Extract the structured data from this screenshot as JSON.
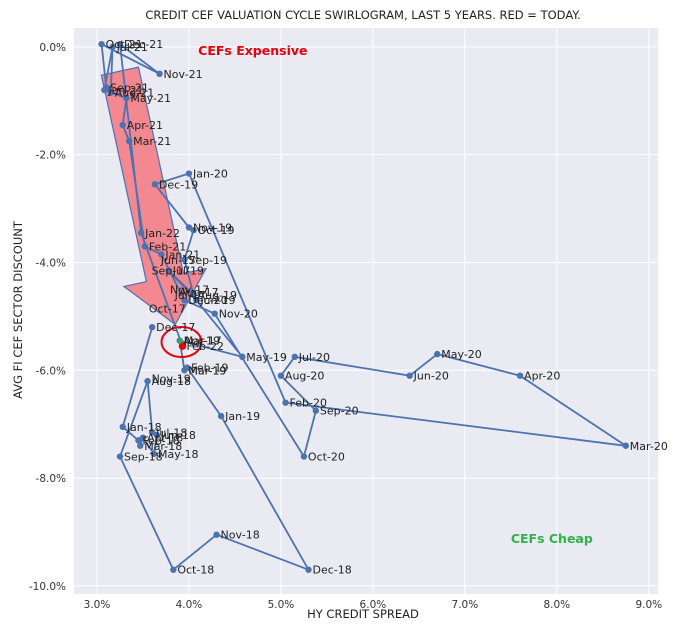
{
  "chart_data": {
    "type": "line",
    "title": "CREDIT CEF VALUATION CYCLE SWIRLOGRAM, LAST 5 YEARS. RED = TODAY.",
    "xlabel": "HY CREDIT SPREAD",
    "ylabel": "AVG FI CEF SECTOR DISCOUNT",
    "xlim": [
      2.75,
      9.1
    ],
    "ylim": [
      -10.15,
      0.35
    ],
    "x_ticks": [
      3.0,
      4.0,
      5.0,
      6.0,
      7.0,
      8.0,
      9.0
    ],
    "x_tick_labels": [
      "3.0%",
      "4.0%",
      "5.0%",
      "6.0%",
      "7.0%",
      "8.0%",
      "9.0%"
    ],
    "y_ticks": [
      0,
      -2,
      -4,
      -6,
      -8,
      -10
    ],
    "y_tick_labels": [
      "0.0%",
      "-2.0%",
      "-4.0%",
      "-6.0%",
      "-8.0%",
      "-10.0%"
    ],
    "grid": true,
    "line_color": "#4c72b0",
    "today_color": "#e8000b",
    "arrow_color": "#f4777f",
    "expensive_color": "#e8000b",
    "cheap_color": "#2db34a",
    "annotations": [
      {
        "text": "CEFs Expensive",
        "x": 4.1,
        "y": -0.15,
        "color_key": "expensive_color"
      },
      {
        "text": "CEFs Cheap",
        "x": 7.5,
        "y": -9.2,
        "color_key": "cheap_color"
      }
    ],
    "arrow": {
      "from": [
        3.25,
        -0.45
      ],
      "to": [
        3.85,
        -5.15
      ]
    },
    "today_marker": {
      "x": 3.93,
      "y": -5.55
    },
    "series": [
      {
        "points": [
          {
            "label": "Dec-17",
            "x": 3.6,
            "y": -5.2
          },
          {
            "label": "Jan-18",
            "x": 3.28,
            "y": -7.05
          },
          {
            "label": "Feb-18",
            "x": 3.45,
            "y": -7.3
          },
          {
            "label": "Mar-18",
            "x": 3.47,
            "y": -7.4
          },
          {
            "label": "Apr-18",
            "x": 3.5,
            "y": -7.25
          },
          {
            "label": "May-18",
            "x": 3.62,
            "y": -7.55
          },
          {
            "label": "Jun-18",
            "x": 3.65,
            "y": -7.2
          },
          {
            "label": "Jul-18",
            "x": 3.6,
            "y": -7.15
          },
          {
            "label": "Aug-18",
            "x": 3.55,
            "y": -6.2
          },
          {
            "label": "Sep-18",
            "x": 3.25,
            "y": -7.6
          },
          {
            "label": "Oct-18",
            "x": 3.83,
            "y": -9.7
          },
          {
            "label": "Nov-18",
            "x": 4.3,
            "y": -9.05
          },
          {
            "label": "Dec-18",
            "x": 5.3,
            "y": -9.7
          },
          {
            "label": "Jan-19",
            "x": 4.35,
            "y": -6.85
          },
          {
            "label": "Feb-19",
            "x": 3.98,
            "y": -5.95
          },
          {
            "label": "Mar-19",
            "x": 3.95,
            "y": -6.0
          },
          {
            "label": "Apr-19",
            "x": 3.9,
            "y": -5.45
          },
          {
            "label": "May-19",
            "x": 4.58,
            "y": -5.75
          },
          {
            "label": "Jun-19",
            "x": 4.08,
            "y": -4.7
          },
          {
            "label": "Jul-19",
            "x": 3.78,
            "y": -4.15
          },
          {
            "label": "Aug-19",
            "x": 4.05,
            "y": -4.6
          },
          {
            "label": "Sep-19",
            "x": 3.95,
            "y": -3.95
          },
          {
            "label": "Oct-19",
            "x": 4.05,
            "y": -3.4
          },
          {
            "label": "Nov-19",
            "x": 4.0,
            "y": -3.35
          },
          {
            "label": "Dec-19",
            "x": 3.63,
            "y": -2.55
          },
          {
            "label": "Jan-20",
            "x": 4.0,
            "y": -2.35
          },
          {
            "label": "Feb-20",
            "x": 5.05,
            "y": -6.6
          },
          {
            "label": "Mar-20",
            "x": 8.75,
            "y": -7.4
          },
          {
            "label": "Apr-20",
            "x": 7.6,
            "y": -6.1
          },
          {
            "label": "May-20",
            "x": 6.7,
            "y": -5.7
          },
          {
            "label": "Jun-20",
            "x": 6.4,
            "y": -6.1
          },
          {
            "label": "Jul-20",
            "x": 5.15,
            "y": -5.75
          },
          {
            "label": "Aug-20",
            "x": 5.0,
            "y": -6.1
          },
          {
            "label": "Sep-20",
            "x": 5.38,
            "y": -6.75
          },
          {
            "label": "Oct-20",
            "x": 5.25,
            "y": -7.6
          },
          {
            "label": "Nov-20",
            "x": 4.28,
            "y": -4.95
          },
          {
            "label": "Dec-20",
            "x": 3.95,
            "y": -4.7
          },
          {
            "label": "Jan-21",
            "x": 3.7,
            "y": -3.85
          },
          {
            "label": "Feb-21",
            "x": 3.52,
            "y": -3.7
          },
          {
            "label": "Mar-21",
            "x": 3.35,
            "y": -1.75
          },
          {
            "label": "Apr-21",
            "x": 3.28,
            "y": -1.45
          },
          {
            "label": "May-21",
            "x": 3.32,
            "y": -0.95
          },
          {
            "label": "Jun-21",
            "x": 3.08,
            "y": -0.8
          },
          {
            "label": "Jul-21",
            "x": 3.17,
            "y": 0.0
          },
          {
            "label": "Aug-21",
            "x": 3.15,
            "y": -0.85
          },
          {
            "label": "Sep-21",
            "x": 3.1,
            "y": -0.75
          },
          {
            "label": "Oct-21",
            "x": 3.05,
            "y": 0.05
          },
          {
            "label": "Nov-21",
            "x": 3.68,
            "y": -0.5
          },
          {
            "label": "Dec-21",
            "x": 3.25,
            "y": 0.05
          },
          {
            "label": "Jan-22",
            "x": 3.48,
            "y": -3.45
          },
          {
            "label": "Feb-22",
            "x": 3.93,
            "y": -5.55
          }
        ]
      }
    ],
    "extra_labels": [
      {
        "text": "Oct-17",
        "x": 3.52,
        "y": -4.85
      },
      {
        "text": "Nov-17",
        "x": 3.75,
        "y": -4.5
      },
      {
        "text": "Sep-17",
        "x": 3.55,
        "y": -4.15
      },
      {
        "text": "Jun-17",
        "x": 3.65,
        "y": -3.95
      },
      {
        "text": "Aug-17",
        "x": 3.85,
        "y": -4.55
      },
      {
        "text": "Jul-17",
        "x": 3.8,
        "y": -4.6
      },
      {
        "text": "Mar-17",
        "x": 3.9,
        "y": -5.45
      },
      {
        "text": "Nov-19",
        "x": 3.55,
        "y": -6.15
      },
      {
        "text": "Mar-19",
        "x": 3.95,
        "y": -6.0
      }
    ]
  }
}
